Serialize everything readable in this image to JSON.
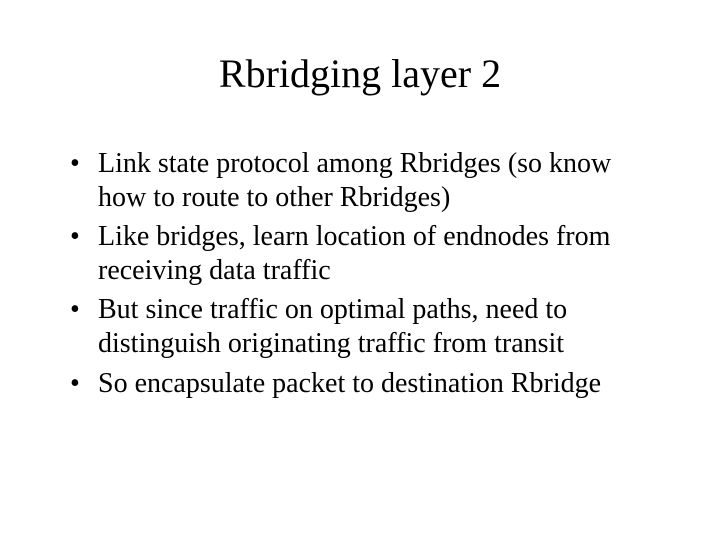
{
  "title": "Rbridging layer 2",
  "bullets": [
    "Link state protocol among Rbridges (so know how to route to other Rbridges)",
    "Like bridges, learn location of endnodes from receiving data traffic",
    "But since traffic on optimal paths, need to distinguish originating traffic from transit",
    "So encapsulate packet to destination Rbridge"
  ],
  "style": {
    "background_color": "#ffffff",
    "text_color": "#000000",
    "title_fontsize": 40,
    "body_fontsize": 28,
    "font_family": "Times New Roman"
  }
}
